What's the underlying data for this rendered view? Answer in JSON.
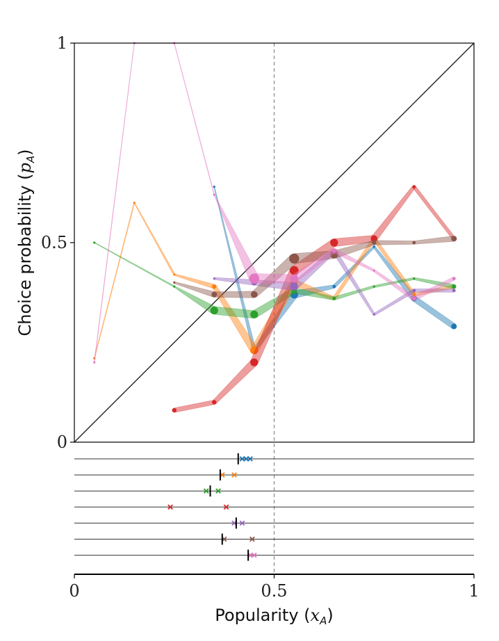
{
  "chart_data": {
    "type": "line",
    "ylabel": "Choice probability (p_A)",
    "xlabel": "Popularity (x_A)",
    "xlabel_text": "Popularity (",
    "xlabel_var": "x",
    "xlabel_sub": "A",
    "ylabel_text": "Choice probability (",
    "ylabel_var": "p",
    "ylabel_sub": "A",
    "close_paren": ")",
    "xlim": [
      0,
      1
    ],
    "ylim": [
      0,
      1
    ],
    "x_ticks": [
      {
        "value": 0,
        "label": "0"
      },
      {
        "value": 0.5,
        "label": "0.5"
      },
      {
        "value": 1,
        "label": "1"
      }
    ],
    "y_ticks": [
      {
        "value": 0,
        "label": "0"
      },
      {
        "value": 0.5,
        "label": "0.5"
      },
      {
        "value": 1,
        "label": "1"
      }
    ],
    "reference_line": {
      "type": "diagonal",
      "from": [
        0,
        0
      ],
      "to": [
        1,
        1
      ]
    },
    "vertical_line_x": 0.5,
    "series": [
      {
        "name": "blue",
        "color": "#1f77b4",
        "x": [
          0.35,
          0.45,
          0.55,
          0.65,
          0.75,
          0.85,
          0.95
        ],
        "y": [
          0.64,
          0.23,
          0.37,
          0.39,
          0.49,
          0.36,
          0.29
        ],
        "w": [
          0.3,
          1.5,
          3.5,
          1.5,
          1.0,
          2.5,
          2.5
        ],
        "strip_markers": [
          0.42,
          0.43,
          0.44
        ],
        "strip_mean": 0.41
      },
      {
        "name": "orange",
        "color": "#ff7f0e",
        "x": [
          0.05,
          0.15,
          0.25,
          0.35,
          0.45,
          0.55,
          0.65,
          0.75,
          0.85,
          0.95
        ],
        "y": [
          0.21,
          0.6,
          0.42,
          0.39,
          0.23,
          0.4,
          0.36,
          0.51,
          0.37,
          0.39
        ],
        "w": [
          0.3,
          0.4,
          0.8,
          2.0,
          3.5,
          3.0,
          1.5,
          1.5,
          1.5,
          1.5
        ],
        "strip_markers": [
          0.37,
          0.4
        ],
        "strip_mean": 0.365
      },
      {
        "name": "green",
        "color": "#2ca02c",
        "x": [
          0.05,
          0.25,
          0.35,
          0.45,
          0.55,
          0.65,
          0.75,
          0.85,
          0.95
        ],
        "y": [
          0.5,
          0.39,
          0.33,
          0.32,
          0.38,
          0.36,
          0.39,
          0.41,
          0.39
        ],
        "w": [
          0.3,
          0.6,
          3.5,
          3.5,
          2.5,
          1.5,
          1.0,
          1.0,
          2.0
        ],
        "strip_markers": [
          0.33,
          0.36
        ],
        "strip_mean": 0.34
      },
      {
        "name": "red",
        "color": "#d62728",
        "x": [
          0.25,
          0.35,
          0.45,
          0.55,
          0.65,
          0.75,
          0.85,
          0.95
        ],
        "y": [
          0.08,
          0.1,
          0.2,
          0.43,
          0.5,
          0.51,
          0.64,
          0.51
        ],
        "w": [
          2.0,
          2.0,
          3.5,
          4.0,
          3.5,
          3.0,
          1.5,
          1.5
        ],
        "strip_markers": [
          0.24,
          0.38
        ],
        "strip_mean": null
      },
      {
        "name": "purple",
        "color": "#9467bd",
        "x": [
          0.35,
          0.45,
          0.55,
          0.65,
          0.75,
          0.85,
          0.95
        ],
        "y": [
          0.41,
          0.4,
          0.39,
          0.48,
          0.32,
          0.38,
          0.38
        ],
        "w": [
          1.0,
          2.5,
          3.5,
          2.0,
          1.0,
          1.5,
          1.5
        ],
        "strip_markers": [
          0.4,
          0.42
        ],
        "strip_mean": 0.405
      },
      {
        "name": "brown",
        "color": "#8c564b",
        "x": [
          0.25,
          0.35,
          0.45,
          0.55,
          0.65,
          0.75,
          0.85,
          0.95
        ],
        "y": [
          0.4,
          0.37,
          0.37,
          0.46,
          0.47,
          0.5,
          0.5,
          0.51
        ],
        "w": [
          0.8,
          2.5,
          3.0,
          4.5,
          3.5,
          2.0,
          1.5,
          2.5
        ],
        "strip_markers": [
          0.375,
          0.445
        ],
        "strip_mean": 0.37
      },
      {
        "name": "pink",
        "color": "#e377c2",
        "x": [
          0.05,
          0.15,
          0.25,
          0.35,
          0.45,
          0.55,
          0.65,
          0.75,
          0.85,
          0.95
        ],
        "y": [
          0.2,
          1.0,
          1.0,
          0.62,
          0.41,
          0.41,
          0.48,
          0.43,
          0.36,
          0.41
        ],
        "w": [
          0.3,
          0.2,
          0.2,
          0.3,
          4.5,
          3.5,
          2.0,
          1.0,
          2.0,
          1.5
        ],
        "strip_markers": [
          0.44,
          0.45
        ],
        "strip_mean": 0.435
      }
    ]
  }
}
